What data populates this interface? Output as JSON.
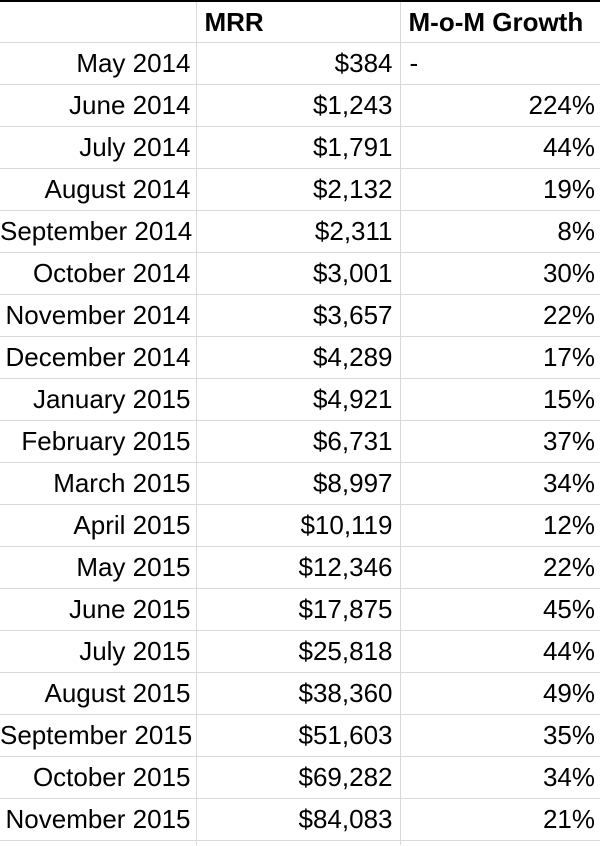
{
  "table": {
    "headers": [
      "",
      "MRR",
      "M-o-M Growth"
    ],
    "rows": [
      {
        "month": "May 2014",
        "mrr": "$384",
        "growth": "-"
      },
      {
        "month": "June 2014",
        "mrr": "$1,243",
        "growth": "224%"
      },
      {
        "month": "July 2014",
        "mrr": "$1,791",
        "growth": "44%"
      },
      {
        "month": "August 2014",
        "mrr": "$2,132",
        "growth": "19%"
      },
      {
        "month": "September 2014",
        "mrr": "$2,311",
        "growth": "8%"
      },
      {
        "month": "October 2014",
        "mrr": "$3,001",
        "growth": "30%"
      },
      {
        "month": "November 2014",
        "mrr": "$3,657",
        "growth": "22%"
      },
      {
        "month": "December 2014",
        "mrr": "$4,289",
        "growth": "17%"
      },
      {
        "month": "January 2015",
        "mrr": "$4,921",
        "growth": "15%"
      },
      {
        "month": "February 2015",
        "mrr": "$6,731",
        "growth": "37%"
      },
      {
        "month": "March 2015",
        "mrr": "$8,997",
        "growth": "34%"
      },
      {
        "month": "April 2015",
        "mrr": "$10,119",
        "growth": "12%"
      },
      {
        "month": "May 2015",
        "mrr": "$12,346",
        "growth": "22%"
      },
      {
        "month": "June 2015",
        "mrr": "$17,875",
        "growth": "45%"
      },
      {
        "month": "July 2015",
        "mrr": "$25,818",
        "growth": "44%"
      },
      {
        "month": "August 2015",
        "mrr": "$38,360",
        "growth": "49%"
      },
      {
        "month": "September 2015",
        "mrr": "$51,603",
        "growth": "35%"
      },
      {
        "month": "October 2015",
        "mrr": "$69,282",
        "growth": "34%"
      },
      {
        "month": "November 2015",
        "mrr": "$84,083",
        "growth": "21%"
      }
    ]
  },
  "colors": {
    "background": "#ffffff",
    "gridline": "#d9d9d9",
    "top_border": "#000000",
    "text": "#000000"
  }
}
